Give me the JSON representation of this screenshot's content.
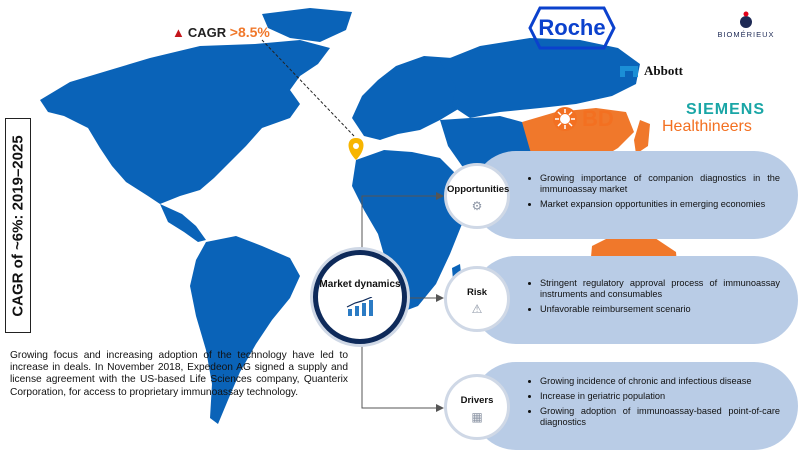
{
  "cagr_vertical": "CAGR of ~6%: 2019–2025",
  "cagr_callout": {
    "label": "CAGR",
    "value": ">8.5%"
  },
  "paragraph": "Growing focus and increasing adoption of the technology have led to increase in deals. In November 2018, Expedeon AG signed a supply and license agreement with the US-based Life Sciences company, Quanterix Corporation, for access to proprietary immunoassay technology.",
  "logos": {
    "roche": "Roche",
    "biomerieux": "BIOMÉRIEUX",
    "abbott": "Abbott",
    "bd": "BD",
    "siemens_line1": "SIEMENS",
    "siemens_line2": "Healthineers"
  },
  "hub": {
    "label": "Market dynamics"
  },
  "sections": [
    {
      "label": "Opportunities",
      "icon": "people-network-icon",
      "points": [
        "Growing importance of companion diagnostics in the immunoassay market",
        "Market expansion opportunities in emerging economies"
      ]
    },
    {
      "label": "Risk",
      "icon": "warning-icon",
      "points": [
        "Stringent regulatory approval process of immunoassay instruments and consumables",
        "Unfavorable reimbursement scenario"
      ]
    },
    {
      "label": "Drivers",
      "icon": "building-icon",
      "points": [
        "Growing incidence of chronic and infectious disease",
        "Increase in geriatric population",
        "Growing adoption of immunoassay-based point-of-care diagnostics"
      ]
    }
  ],
  "colors": {
    "map_blue": "#0a63b8",
    "map_highlight": "#f0782b",
    "pill": "#b9cce6",
    "hub_border": "#0e2a5a"
  }
}
